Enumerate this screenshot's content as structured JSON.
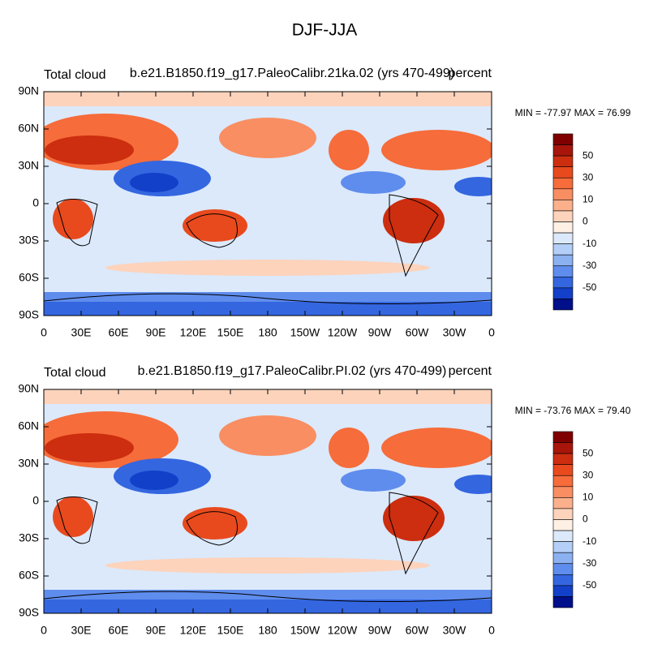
{
  "title": "DJF-JJA",
  "panels": [
    {
      "left_label": "Total cloud",
      "center_label": "b.e21.B1850.f19_g17.PaleoCalibr.21ka.02 (yrs 470-499)",
      "right_label": "percent",
      "min_max": "MIN = -77.97 MAX =  76.99"
    },
    {
      "left_label": "Total cloud",
      "center_label": "b.e21.B1850.f19_g17.PaleoCalibr.PI.02 (yrs 470-499)",
      "right_label": "percent",
      "min_max": "MIN = -73.76 MAX =  79.40"
    }
  ],
  "lat_ticks": [
    "90N",
    "60N",
    "30N",
    "0",
    "30S",
    "60S",
    "90S"
  ],
  "lon_ticks": [
    "0",
    "30E",
    "60E",
    "90E",
    "120E",
    "150E",
    "180",
    "150W",
    "120W",
    "90W",
    "60W",
    "30W",
    "0"
  ],
  "colorbar": {
    "labels": [
      "50",
      "30",
      "10",
      "0",
      "-10",
      "-30",
      "-50"
    ],
    "colors": [
      "#800000",
      "#a8150a",
      "#cc2e0f",
      "#e84a1e",
      "#f66c3a",
      "#f98e62",
      "#fbb08c",
      "#fdd3bc",
      "#fff0e4",
      "#dbe9fb",
      "#b3cff7",
      "#8bb1f1",
      "#5f8ded",
      "#3466e0",
      "#1340c8",
      "#000f8a"
    ]
  }
}
